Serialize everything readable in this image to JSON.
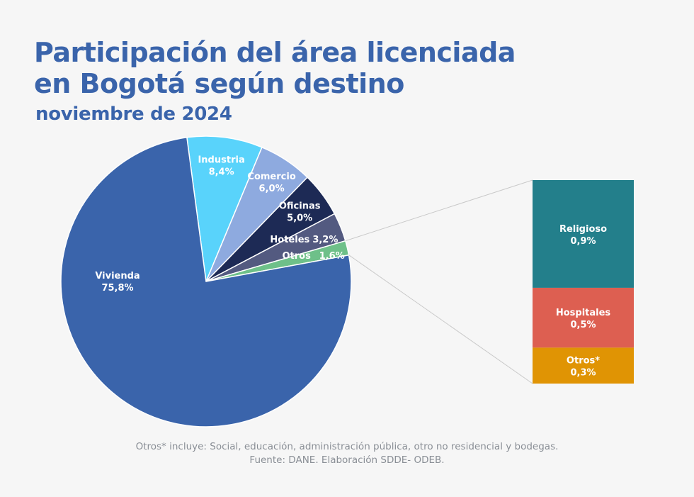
{
  "header": {
    "title_line1": "Participación del área licenciada",
    "title_line2": "en Bogotá según destino",
    "subtitle": "noviembre de 2024"
  },
  "chart_data": {
    "type": "pie",
    "title": "Participación del área licenciada en Bogotá según destino",
    "subtitle": "noviembre de 2024",
    "unit": "%",
    "slices": [
      {
        "category": "Industria",
        "value": 8.4,
        "label": "8,4%",
        "color": "#59d3fb"
      },
      {
        "category": "Comercio",
        "value": 6.0,
        "label": "6,0%",
        "color": "#8eaadf"
      },
      {
        "category": "Oficinas",
        "value": 5.0,
        "label": "5,0%",
        "color": "#1d2a55"
      },
      {
        "category": "Hoteles",
        "value": 3.2,
        "label": "3,2%",
        "color": "#535a80"
      },
      {
        "category": "Otros",
        "value": 1.6,
        "label": "1,6%",
        "color": "#6ec089"
      },
      {
        "category": "Vivienda",
        "value": 75.8,
        "label": "75,8%",
        "color": "#3a64ab"
      }
    ],
    "breakdown_of": "Otros",
    "breakdown": [
      {
        "category": "Religioso",
        "value": 0.9,
        "label": "0,9%",
        "color": "#237f8b"
      },
      {
        "category": "Hospitales",
        "value": 0.5,
        "label": "0,5%",
        "color": "#dd5f51"
      },
      {
        "category": "Otros*",
        "value": 0.3,
        "label": "0,3%",
        "color": "#e09404"
      }
    ]
  },
  "footnotes": {
    "note": "Otros* incluye: Social, educación, administración pública, otro no residencial y bodegas.",
    "source": "Fuente: DANE. Elaboración SDDE- ODEB."
  }
}
